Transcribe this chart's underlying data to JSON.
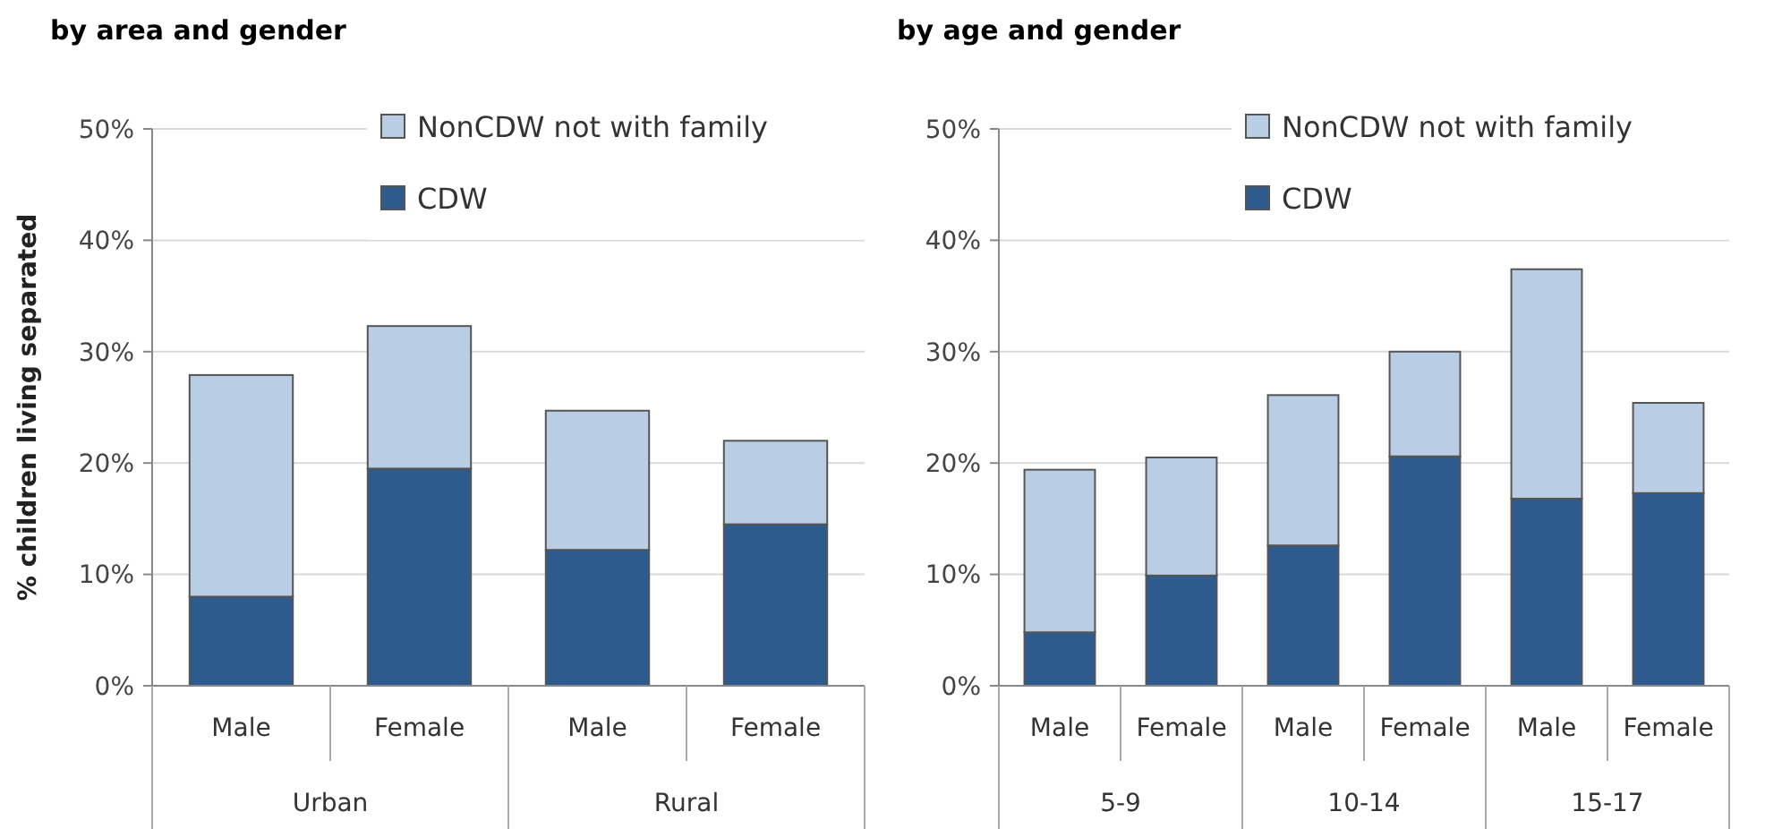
{
  "chart_data": [
    {
      "type": "bar",
      "title": "by area and gender",
      "ylabel": "% children living separated",
      "categories": [
        "Male",
        "Female",
        "Male",
        "Female"
      ],
      "annotations": [
        "Urban",
        "Rural"
      ],
      "stacked": true,
      "series": [
        {
          "name": "CDW",
          "color": "#2e5b8e",
          "values": [
            8.0,
            19.5,
            12.2,
            14.5
          ]
        },
        {
          "name": "NonCDW not with family",
          "color": "#b9cde5",
          "values": [
            19.9,
            12.8,
            12.5,
            7.5
          ]
        }
      ],
      "ylim": [
        0,
        50
      ],
      "yticks": [
        {
          "value": 0,
          "label": "0%"
        },
        {
          "value": 10,
          "label": "10%"
        },
        {
          "value": 20,
          "label": "20%"
        },
        {
          "value": 30,
          "label": "30%"
        },
        {
          "value": 40,
          "label": "40%"
        },
        {
          "value": 50,
          "label": "50%"
        }
      ],
      "grid": "y",
      "legend": "top right"
    },
    {
      "type": "bar",
      "title": "by age and gender",
      "categories": [
        "Male",
        "Female",
        "Male",
        "Female",
        "Male",
        "Female"
      ],
      "annotations": [
        "5-9",
        "10-14",
        "15-17"
      ],
      "stacked": true,
      "series": [
        {
          "name": "CDW",
          "color": "#2e5b8e",
          "values": [
            4.8,
            9.9,
            12.6,
            20.6,
            16.8,
            17.3
          ]
        },
        {
          "name": "NonCDW not with family",
          "color": "#b9cde5",
          "values": [
            14.6,
            10.6,
            13.5,
            9.4,
            20.6,
            8.1
          ]
        }
      ],
      "ylim": [
        0,
        50
      ],
      "yticks": [
        {
          "value": 0,
          "label": "0%"
        },
        {
          "value": 10,
          "label": "10%"
        },
        {
          "value": 20,
          "label": "20%"
        },
        {
          "value": 30,
          "label": "30%"
        },
        {
          "value": 40,
          "label": "40%"
        },
        {
          "value": 50,
          "label": "50%"
        }
      ],
      "grid": "y",
      "legend": "top right"
    }
  ]
}
